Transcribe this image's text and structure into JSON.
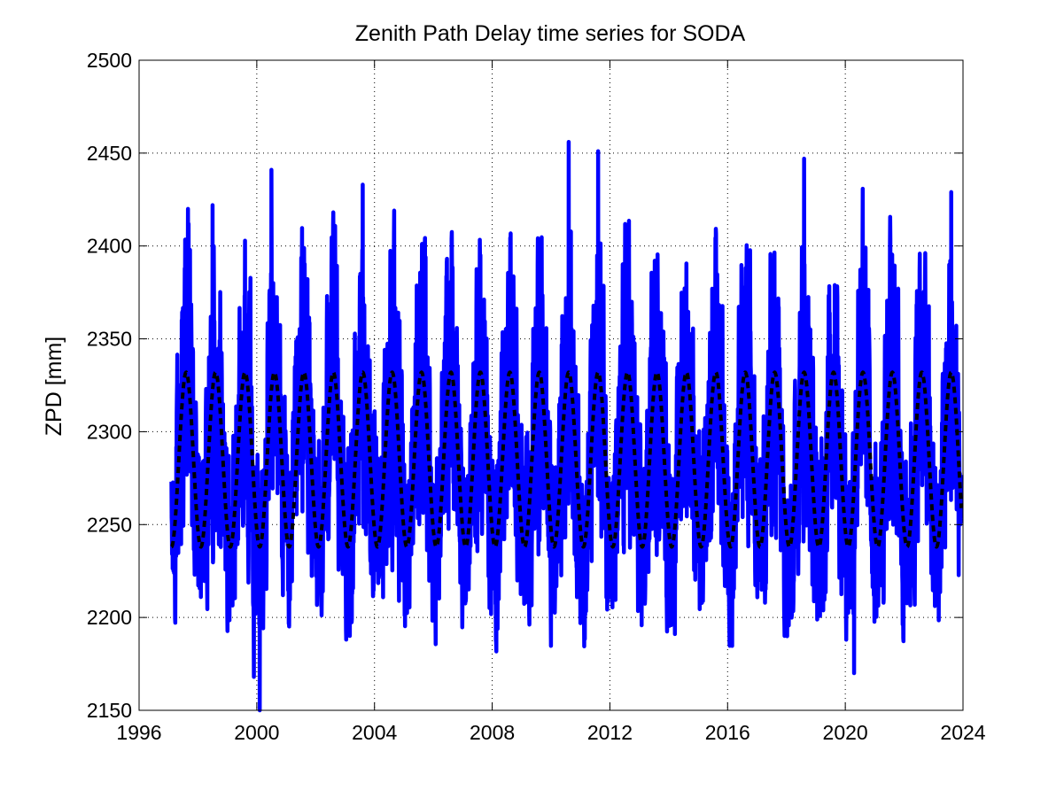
{
  "chart_data": {
    "type": "line",
    "title": "Zenith Path Delay time series for SODA",
    "xlabel": "",
    "ylabel": "ZPD [mm]",
    "xlim": [
      1996,
      2024
    ],
    "ylim": [
      2150,
      2500
    ],
    "xticks": [
      1996,
      2000,
      2004,
      2008,
      2012,
      2016,
      2020,
      2024
    ],
    "yticks": [
      2150,
      2200,
      2250,
      2300,
      2350,
      2400,
      2450,
      2500
    ],
    "grid": true,
    "legend": "none",
    "series": [
      {
        "style": "solid",
        "color": "#0000ff",
        "x_range": [
          1997.1,
          2023.95
        ],
        "seasonal_model": {
          "mean": 2285,
          "annual_amplitude": 47,
          "peak_year_fraction": 0.6
        },
        "envelope_extremes": [
          {
            "x": 1997.6,
            "y": 2400
          },
          {
            "x": 1998.5,
            "y": 2422
          },
          {
            "x": 1999.9,
            "y": 2168
          },
          {
            "x": 2000.1,
            "y": 2150
          },
          {
            "x": 2000.5,
            "y": 2441
          },
          {
            "x": 2003.6,
            "y": 2433
          },
          {
            "x": 2010.6,
            "y": 2456
          },
          {
            "x": 2011.6,
            "y": 2451
          },
          {
            "x": 2018.6,
            "y": 2447
          },
          {
            "x": 2020.3,
            "y": 2170
          },
          {
            "x": 2023.6,
            "y": 2429
          }
        ]
      },
      {
        "style": "dashed",
        "color": "#000000",
        "x_range": [
          1997.1,
          2023.95
        ],
        "seasonal_model": {
          "mean": 2285,
          "annual_amplitude": 47,
          "peak_year_fraction": 0.6
        }
      }
    ]
  }
}
